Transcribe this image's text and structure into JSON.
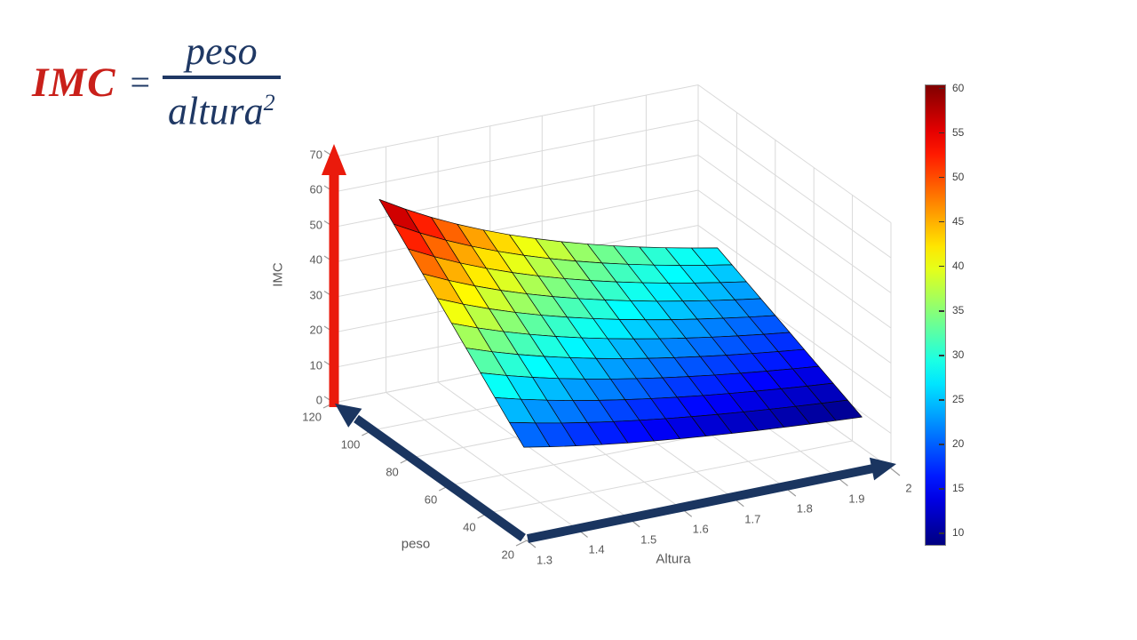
{
  "formula": {
    "lhs": "IMC",
    "equals": "=",
    "numerator": "peso",
    "denominator_base": "altura",
    "denominator_exponent": "2",
    "lhs_color": "#c9201a",
    "rhs_color": "#1f3864"
  },
  "chart_data": {
    "type": "3d-surface",
    "title": "",
    "x": {
      "label": "Altura",
      "limits": [
        1.3,
        2.0
      ],
      "ticks": [
        "1.3",
        "1.4",
        "1.5",
        "1.6",
        "1.7",
        "1.8",
        "1.9",
        "2"
      ]
    },
    "y": {
      "label": "peso",
      "limits": [
        20,
        120
      ],
      "ticks": [
        "20",
        "40",
        "60",
        "80",
        "100",
        "120"
      ]
    },
    "z": {
      "label": "IMC",
      "limits": [
        0,
        70
      ],
      "ticks": [
        "0",
        "10",
        "20",
        "30",
        "40",
        "50",
        "60",
        "70"
      ]
    },
    "surface": {
      "z_formula": "IMC = peso / altura^2",
      "altura_min": 1.35,
      "altura_max": 2.0,
      "altura_points": 14,
      "peso_min": 35,
      "peso_max": 110,
      "peso_points": 11
    },
    "colormap": "jet",
    "color_limits": [
      8.75,
      60.36
    ],
    "colorbar_ticks": [
      "60",
      "55",
      "50",
      "45",
      "40",
      "35",
      "30",
      "25",
      "20",
      "15",
      "10"
    ],
    "colors": {
      "z_arrow": "#ea1a0c",
      "xy_arrow": "#1a3560",
      "grid": "#d9d9d9",
      "tick_mark": "#9a9a9a",
      "tick_text": "#595959",
      "mesh_edge": "#0a0a0a"
    }
  }
}
